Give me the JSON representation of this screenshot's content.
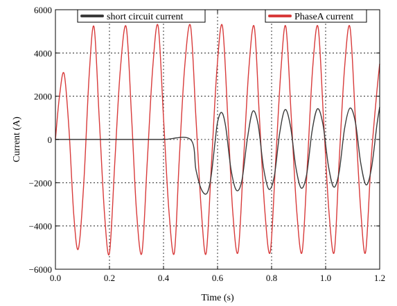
{
  "chart_data": {
    "type": "line",
    "title": "",
    "xlabel": "Time (s)",
    "ylabel": "Current (A)",
    "xlim": [
      0,
      1.2
    ],
    "ylim": [
      -6000,
      6000
    ],
    "xticks": [
      0.0,
      0.2,
      0.4,
      0.6,
      0.8,
      1.0,
      1.2
    ],
    "xtick_labels": [
      "0.0",
      "0.2",
      "0.4",
      "0.6",
      "0.8",
      "1.0",
      "1.2"
    ],
    "yticks": [
      -6000,
      -4000,
      -2000,
      0,
      2000,
      4000,
      6000
    ],
    "ytick_labels": [
      "−6000",
      "−4000",
      "−2000",
      "0",
      "2000",
      "4000",
      "6000"
    ],
    "grid": true,
    "grid_style": "dotted",
    "legend": "top",
    "series": [
      {
        "name": "short circuit current",
        "color": "#3a3a3a",
        "x": [
          0.0,
          0.1,
          0.2,
          0.3,
          0.4,
          0.5,
          0.52,
          0.54,
          0.56,
          0.575,
          0.59,
          0.6,
          0.615,
          0.63,
          0.65,
          0.67,
          0.69,
          0.71,
          0.73,
          0.75,
          0.77,
          0.79,
          0.81,
          0.83,
          0.85,
          0.87,
          0.89,
          0.91,
          0.93,
          0.95,
          0.97,
          0.99,
          1.01,
          1.03,
          1.05,
          1.07,
          1.09,
          1.11,
          1.13,
          1.15,
          1.17,
          1.19,
          1.2
        ],
        "y": [
          0,
          0,
          0,
          0,
          0,
          0,
          -1400,
          -2300,
          -2500,
          -1800,
          -200,
          800,
          1250,
          600,
          -1400,
          -2350,
          -1900,
          0,
          1300,
          700,
          -1300,
          -2300,
          -1700,
          300,
          1380,
          600,
          -1300,
          -2250,
          -1600,
          400,
          1420,
          700,
          -1200,
          -2200,
          -1500,
          500,
          1450,
          800,
          -1100,
          -2100,
          -1300,
          700,
          1500
        ]
      },
      {
        "name": "PhaseA current",
        "color": "#d83a3a",
        "x": [
          0.0,
          0.015,
          0.032,
          0.05,
          0.068,
          0.085,
          0.105,
          0.125,
          0.143,
          0.162,
          0.182,
          0.2,
          0.22,
          0.24,
          0.262,
          0.282,
          0.3,
          0.32,
          0.34,
          0.36,
          0.38,
          0.4,
          0.42,
          0.44,
          0.458,
          0.478,
          0.5,
          0.52,
          0.54,
          0.558,
          0.578,
          0.598,
          0.618,
          0.638,
          0.656,
          0.676,
          0.696,
          0.716,
          0.736,
          0.755,
          0.775,
          0.795,
          0.815,
          0.835,
          0.853,
          0.873,
          0.893,
          0.913,
          0.933,
          0.952,
          0.972,
          0.992,
          1.012,
          1.032,
          1.05,
          1.07,
          1.09,
          1.11,
          1.13,
          1.148,
          1.168,
          1.188,
          1.2
        ],
        "y": [
          0,
          2000,
          3050,
          500,
          -3500,
          -5050,
          -2000,
          3000,
          5200,
          1000,
          -3500,
          -5250,
          -1000,
          3200,
          5200,
          1000,
          -3300,
          -5250,
          -1000,
          3300,
          5250,
          1000,
          -3300,
          -5250,
          -1000,
          3300,
          5250,
          1000,
          -3300,
          -5250,
          -1000,
          3300,
          5250,
          1000,
          -3300,
          -5200,
          -1000,
          3300,
          5200,
          1000,
          -3300,
          -5200,
          -1000,
          3300,
          5200,
          1000,
          -3300,
          -5200,
          -1000,
          3300,
          5200,
          1000,
          -3300,
          -5200,
          -1000,
          3300,
          5200,
          1000,
          -3300,
          -5200,
          -1000,
          2000,
          3500
        ]
      }
    ]
  }
}
